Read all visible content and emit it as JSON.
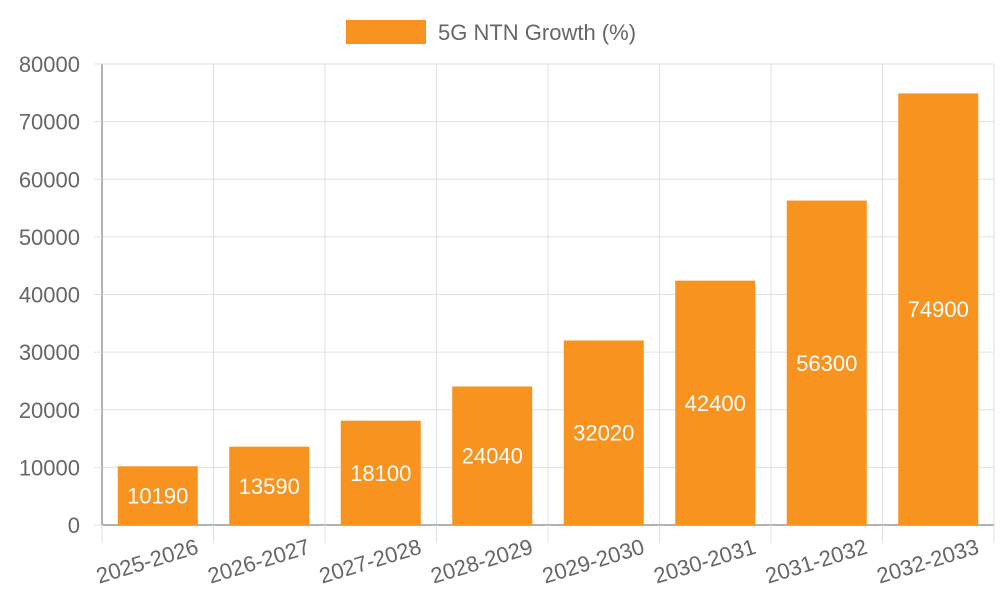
{
  "chart_data": {
    "type": "bar",
    "title": "",
    "xlabel": "",
    "ylabel": "",
    "legend": {
      "label": "5G NTN Growth (%)",
      "position": "top"
    },
    "categories": [
      "2025-2026",
      "2026-2027",
      "2027-2028",
      "2028-2029",
      "2029-2030",
      "2030-2031",
      "2031-2032",
      "2032-2033"
    ],
    "series": [
      {
        "name": "5G NTN Growth (%)",
        "values": [
          10190,
          13590,
          18100,
          24040,
          32020,
          42400,
          56300,
          74900
        ],
        "color": "#f7931e"
      }
    ],
    "ylim": [
      0,
      80000
    ],
    "yticks": [
      0,
      10000,
      20000,
      30000,
      40000,
      50000,
      60000,
      70000,
      80000
    ],
    "grid": true,
    "data_labels": true,
    "data_label_color": "#ffffff",
    "axis_text_color": "#666666",
    "grid_color": "#e0e0e0",
    "axis_line_color": "#999999"
  }
}
